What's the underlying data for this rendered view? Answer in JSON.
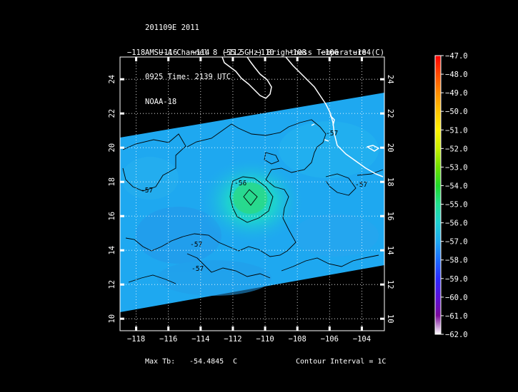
{
  "header": {
    "line1": "201109E 2011",
    "line2": "AMSU-A Channel 8 (55.5GHz) Brightness Temperature (C)",
    "line3": "0925 Time: 2139 UTC",
    "line4": "NOAA-18"
  },
  "map": {
    "lon_ticks": [
      "-118",
      "-116",
      "-114",
      "-112",
      "-110",
      "-108",
      "-106",
      "-104"
    ],
    "lat_ticks": [
      "10",
      "12",
      "14",
      "16",
      "18",
      "20",
      "22",
      "24"
    ],
    "lon_range": [
      -119,
      -102.6
    ],
    "lat_range": [
      9.3,
      25.3
    ],
    "grid": "dotted",
    "contour_labels": [
      "-57",
      "-56",
      "-57",
      "-57",
      "-57",
      "-57"
    ]
  },
  "colorbar": {
    "labels": [
      "-47.0",
      "-48.0",
      "-49.0",
      "-50.0",
      "-51.0",
      "-52.0",
      "-53.0",
      "-54.0",
      "-55.0",
      "-56.0",
      "-57.0",
      "-58.0",
      "-59.0",
      "-60.0",
      "-61.0",
      "-62.0"
    ],
    "colors": [
      "#ff0000",
      "#ff4a00",
      "#ff8c00",
      "#ffc400",
      "#fff200",
      "#c8f000",
      "#6ee000",
      "#1ed82a",
      "#20e090",
      "#1ecfd2",
      "#1ea8f0",
      "#1a6cff",
      "#2a2aff",
      "#5a10d8",
      "#7a0a9a",
      "#ffffff"
    ]
  },
  "footer": {
    "max_tb_label": "Max Tb:",
    "max_tb_value": "-54.4845",
    "max_tb_unit": "C",
    "contour_interval": "Contour Interval = 1C"
  }
}
